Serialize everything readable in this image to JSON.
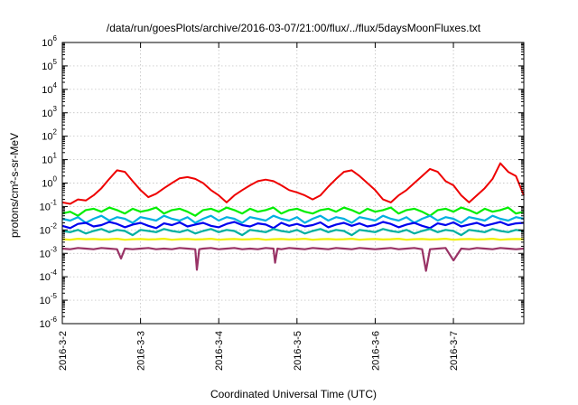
{
  "chart_data": {
    "type": "line",
    "title": "/data/run/goesPlots/archive/2016-03-07/21:00/flux/../flux/5daysMoonFluxes.txt",
    "xlabel": "Coordinated Universal Time (UTC)",
    "ylabel": "protons/cm²-s-sr-MeV",
    "yscale": "log",
    "ylim": [
      1e-06,
      1000000.0
    ],
    "y_ticks": [
      -6,
      -5,
      -4,
      -3,
      -2,
      -1,
      0,
      1,
      2,
      3,
      4,
      5,
      6
    ],
    "xlim": [
      0,
      5.9
    ],
    "x_ticks": [
      0,
      1,
      2,
      3,
      4,
      5
    ],
    "x_tick_labels": [
      "2016-3-2",
      "2016-3-3",
      "2016-3-4",
      "2016-3-5",
      "2016-3-6",
      "2016-3-7"
    ],
    "grid": true,
    "legend": "none",
    "series": [
      {
        "color": "#ee0000",
        "x": [
          0,
          0.1,
          0.2,
          0.3,
          0.4,
          0.5,
          0.6,
          0.7,
          0.8,
          0.9,
          1.0,
          1.1,
          1.2,
          1.3,
          1.4,
          1.5,
          1.6,
          1.7,
          1.8,
          1.9,
          2.0,
          2.1,
          2.2,
          2.3,
          2.4,
          2.5,
          2.6,
          2.7,
          2.8,
          2.9,
          3.0,
          3.1,
          3.2,
          3.3,
          3.4,
          3.5,
          3.6,
          3.7,
          3.8,
          3.9,
          4.0,
          4.1,
          4.2,
          4.3,
          4.4,
          4.5,
          4.6,
          4.7,
          4.8,
          4.9,
          5.0,
          5.1,
          5.2,
          5.3,
          5.4,
          5.5,
          5.6,
          5.7,
          5.8,
          5.9
        ],
        "y": [
          0.15,
          0.13,
          0.2,
          0.18,
          0.3,
          0.6,
          1.5,
          3.5,
          3.0,
          1.2,
          0.5,
          0.25,
          0.35,
          0.6,
          1.0,
          1.6,
          1.8,
          1.5,
          1.0,
          0.5,
          0.3,
          0.15,
          0.3,
          0.5,
          0.8,
          1.2,
          1.4,
          1.2,
          0.8,
          0.5,
          0.4,
          0.3,
          0.2,
          0.3,
          0.7,
          1.5,
          3.0,
          3.5,
          2.0,
          1.0,
          0.5,
          0.2,
          0.15,
          0.3,
          0.5,
          1.0,
          2.0,
          4.0,
          3.0,
          1.2,
          0.8,
          0.3,
          0.15,
          0.3,
          0.6,
          1.5,
          7.0,
          3.0,
          2.0,
          0.3
        ]
      },
      {
        "color": "#00ee00",
        "x": [
          0,
          0.1,
          0.2,
          0.3,
          0.4,
          0.5,
          0.6,
          0.7,
          0.8,
          0.9,
          1.0,
          1.1,
          1.2,
          1.3,
          1.4,
          1.5,
          1.6,
          1.7,
          1.8,
          1.9,
          2.0,
          2.1,
          2.2,
          2.3,
          2.4,
          2.5,
          2.6,
          2.7,
          2.8,
          2.9,
          3.0,
          3.1,
          3.2,
          3.3,
          3.4,
          3.5,
          3.6,
          3.7,
          3.8,
          3.9,
          4.0,
          4.1,
          4.2,
          4.3,
          4.4,
          4.5,
          4.6,
          4.7,
          4.8,
          4.9,
          5.0,
          5.1,
          5.2,
          5.3,
          5.4,
          5.5,
          5.6,
          5.7,
          5.8,
          5.9
        ],
        "y": [
          0.05,
          0.06,
          0.04,
          0.07,
          0.08,
          0.06,
          0.09,
          0.07,
          0.05,
          0.08,
          0.06,
          0.07,
          0.09,
          0.05,
          0.07,
          0.08,
          0.06,
          0.04,
          0.07,
          0.08,
          0.06,
          0.09,
          0.07,
          0.05,
          0.08,
          0.06,
          0.07,
          0.09,
          0.05,
          0.07,
          0.08,
          0.06,
          0.05,
          0.07,
          0.08,
          0.06,
          0.09,
          0.07,
          0.05,
          0.08,
          0.06,
          0.07,
          0.09,
          0.05,
          0.07,
          0.08,
          0.06,
          0.04,
          0.07,
          0.08,
          0.06,
          0.09,
          0.07,
          0.05,
          0.08,
          0.06,
          0.07,
          0.09,
          0.05,
          0.06
        ]
      },
      {
        "color": "#00b0e0",
        "x": [
          0,
          0.1,
          0.2,
          0.3,
          0.4,
          0.5,
          0.6,
          0.7,
          0.8,
          0.9,
          1.0,
          1.1,
          1.2,
          1.3,
          1.4,
          1.5,
          1.6,
          1.7,
          1.8,
          1.9,
          2.0,
          2.1,
          2.2,
          2.3,
          2.4,
          2.5,
          2.6,
          2.7,
          2.8,
          2.9,
          3.0,
          3.1,
          3.2,
          3.3,
          3.4,
          3.5,
          3.6,
          3.7,
          3.8,
          3.9,
          4.0,
          4.1,
          4.2,
          4.3,
          4.4,
          4.5,
          4.6,
          4.7,
          4.8,
          4.9,
          5.0,
          5.1,
          5.2,
          5.3,
          5.4,
          5.5,
          5.6,
          5.7,
          5.8,
          5.9
        ],
        "y": [
          0.03,
          0.025,
          0.035,
          0.02,
          0.03,
          0.04,
          0.025,
          0.035,
          0.03,
          0.02,
          0.035,
          0.03,
          0.025,
          0.04,
          0.03,
          0.025,
          0.035,
          0.02,
          0.03,
          0.04,
          0.025,
          0.035,
          0.03,
          0.02,
          0.035,
          0.03,
          0.025,
          0.04,
          0.03,
          0.025,
          0.035,
          0.02,
          0.03,
          0.04,
          0.025,
          0.035,
          0.03,
          0.02,
          0.035,
          0.03,
          0.025,
          0.04,
          0.03,
          0.025,
          0.035,
          0.02,
          0.03,
          0.04,
          0.025,
          0.035,
          0.03,
          0.02,
          0.035,
          0.03,
          0.025,
          0.04,
          0.03,
          0.025,
          0.035,
          0.03
        ]
      },
      {
        "color": "#0000ee",
        "x": [
          0,
          0.1,
          0.2,
          0.3,
          0.4,
          0.5,
          0.6,
          0.7,
          0.8,
          0.9,
          1.0,
          1.1,
          1.2,
          1.3,
          1.4,
          1.5,
          1.6,
          1.7,
          1.8,
          1.9,
          2.0,
          2.1,
          2.2,
          2.3,
          2.4,
          2.5,
          2.6,
          2.7,
          2.8,
          2.9,
          3.0,
          3.1,
          3.2,
          3.3,
          3.4,
          3.5,
          3.6,
          3.7,
          3.8,
          3.9,
          4.0,
          4.1,
          4.2,
          4.3,
          4.4,
          4.5,
          4.6,
          4.7,
          4.8,
          4.9,
          5.0,
          5.1,
          5.2,
          5.3,
          5.4,
          5.5,
          5.6,
          5.7,
          5.8,
          5.9
        ],
        "y": [
          0.015,
          0.012,
          0.018,
          0.02,
          0.014,
          0.016,
          0.022,
          0.018,
          0.013,
          0.017,
          0.02,
          0.015,
          0.012,
          0.019,
          0.016,
          0.021,
          0.014,
          0.017,
          0.02,
          0.015,
          0.013,
          0.018,
          0.022,
          0.016,
          0.014,
          0.019,
          0.017,
          0.012,
          0.02,
          0.015,
          0.018,
          0.014,
          0.016,
          0.021,
          0.013,
          0.017,
          0.02,
          0.015,
          0.019,
          0.014,
          0.016,
          0.022,
          0.018,
          0.013,
          0.017,
          0.02,
          0.015,
          0.012,
          0.019,
          0.016,
          0.021,
          0.014,
          0.017,
          0.02,
          0.015,
          0.018,
          0.022,
          0.016,
          0.019,
          0.02
        ]
      },
      {
        "color": "#00b0a0",
        "x": [
          0,
          0.1,
          0.2,
          0.3,
          0.4,
          0.5,
          0.6,
          0.7,
          0.8,
          0.9,
          1.0,
          1.1,
          1.2,
          1.3,
          1.4,
          1.5,
          1.6,
          1.7,
          1.8,
          1.9,
          2.0,
          2.1,
          2.2,
          2.3,
          2.4,
          2.5,
          2.6,
          2.7,
          2.8,
          2.9,
          3.0,
          3.1,
          3.2,
          3.3,
          3.4,
          3.5,
          3.6,
          3.7,
          3.8,
          3.9,
          4.0,
          4.1,
          4.2,
          4.3,
          4.4,
          4.5,
          4.6,
          4.7,
          4.8,
          4.9,
          5.0,
          5.1,
          5.2,
          5.3,
          5.4,
          5.5,
          5.6,
          5.7,
          5.8,
          5.9
        ],
        "y": [
          0.009,
          0.008,
          0.01,
          0.007,
          0.009,
          0.011,
          0.008,
          0.01,
          0.009,
          0.006,
          0.01,
          0.009,
          0.008,
          0.011,
          0.009,
          0.008,
          0.01,
          0.007,
          0.009,
          0.011,
          0.008,
          0.01,
          0.009,
          0.006,
          0.01,
          0.009,
          0.008,
          0.011,
          0.009,
          0.008,
          0.01,
          0.007,
          0.009,
          0.011,
          0.008,
          0.01,
          0.009,
          0.006,
          0.01,
          0.009,
          0.008,
          0.011,
          0.009,
          0.008,
          0.01,
          0.007,
          0.009,
          0.011,
          0.008,
          0.01,
          0.009,
          0.006,
          0.01,
          0.009,
          0.008,
          0.011,
          0.009,
          0.008,
          0.01,
          0.009
        ]
      },
      {
        "color": "#f0f000",
        "x": [
          0,
          0.1,
          0.2,
          0.3,
          0.4,
          0.5,
          0.6,
          0.7,
          0.8,
          0.9,
          1.0,
          1.1,
          1.2,
          1.3,
          1.4,
          1.5,
          1.6,
          1.7,
          1.8,
          1.9,
          2.0,
          2.1,
          2.2,
          2.3,
          2.4,
          2.5,
          2.6,
          2.7,
          2.8,
          2.9,
          3.0,
          3.1,
          3.2,
          3.3,
          3.4,
          3.5,
          3.6,
          3.7,
          3.8,
          3.9,
          4.0,
          4.1,
          4.2,
          4.3,
          4.4,
          4.5,
          4.6,
          4.7,
          4.8,
          4.9,
          5.0,
          5.1,
          5.2,
          5.3,
          5.4,
          5.5,
          5.6,
          5.7,
          5.8,
          5.9
        ],
        "y": [
          0.004,
          0.0038,
          0.0042,
          0.004,
          0.0041,
          0.0039,
          0.004,
          0.0042,
          0.0038,
          0.004,
          0.0041,
          0.0039,
          0.004,
          0.0042,
          0.0038,
          0.004,
          0.0041,
          0.0039,
          0.004,
          0.0042,
          0.0038,
          0.004,
          0.0041,
          0.0039,
          0.004,
          0.0042,
          0.0038,
          0.004,
          0.0041,
          0.0039,
          0.004,
          0.0042,
          0.0038,
          0.004,
          0.0041,
          0.0039,
          0.004,
          0.0042,
          0.0038,
          0.004,
          0.0041,
          0.0039,
          0.004,
          0.0042,
          0.0038,
          0.004,
          0.0041,
          0.0039,
          0.004,
          0.0042,
          0.0038,
          0.004,
          0.0041,
          0.0039,
          0.004,
          0.0042,
          0.0038,
          0.004,
          0.0041,
          0.004
        ]
      },
      {
        "color": "#993366",
        "x": [
          0,
          0.1,
          0.2,
          0.3,
          0.4,
          0.5,
          0.6,
          0.7,
          0.75,
          0.8,
          0.9,
          1.0,
          1.1,
          1.2,
          1.3,
          1.4,
          1.5,
          1.6,
          1.7,
          1.72,
          1.75,
          1.8,
          1.9,
          2.0,
          2.1,
          2.2,
          2.3,
          2.4,
          2.5,
          2.6,
          2.7,
          2.72,
          2.75,
          2.8,
          2.9,
          3.0,
          3.1,
          3.2,
          3.3,
          3.4,
          3.5,
          3.6,
          3.7,
          3.8,
          3.9,
          4.0,
          4.1,
          4.2,
          4.3,
          4.4,
          4.5,
          4.6,
          4.65,
          4.7,
          4.8,
          4.9,
          5.0,
          5.1,
          5.2,
          5.3,
          5.4,
          5.5,
          5.6,
          5.7,
          5.8,
          5.9
        ],
        "y": [
          0.0016,
          0.0015,
          0.0017,
          0.0016,
          0.0015,
          0.0017,
          0.0016,
          0.0015,
          0.0006,
          0.0016,
          0.0015,
          0.0016,
          0.0017,
          0.0015,
          0.0016,
          0.0015,
          0.0017,
          0.0016,
          0.0015,
          0.0002,
          0.0015,
          0.0016,
          0.0017,
          0.0015,
          0.0016,
          0.0017,
          0.0015,
          0.0016,
          0.0015,
          0.0017,
          0.0016,
          0.0004,
          0.0016,
          0.0015,
          0.0017,
          0.0016,
          0.0015,
          0.0017,
          0.0016,
          0.0015,
          0.0017,
          0.0016,
          0.0015,
          0.0017,
          0.0016,
          0.0015,
          0.0016,
          0.0017,
          0.0015,
          0.0016,
          0.0017,
          0.0015,
          0.00018,
          0.0015,
          0.0016,
          0.0017,
          0.0005,
          0.0016,
          0.0015,
          0.0017,
          0.0016,
          0.0015,
          0.0017,
          0.0016,
          0.0015,
          0.0016
        ]
      }
    ]
  }
}
